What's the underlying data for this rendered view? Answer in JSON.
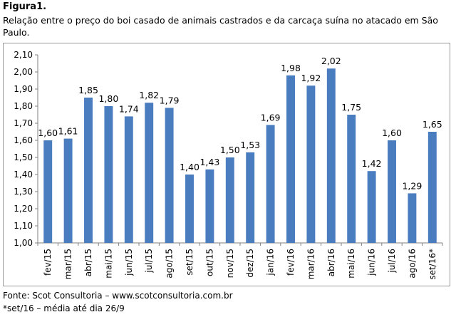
{
  "figure_label": "Figura1.",
  "caption": "Relação entre o preço do boi casado de animais castrados e da carcaça suína no atacado em São Paulo.",
  "source": "Fonte: Scot Consultoria – www.scotconsultoria.com.br",
  "footnote": "*set/16 – média até dia 26/9",
  "colors": {
    "bar": "#4a7cc0",
    "axis": "#808080",
    "grid": "#d9d9d9"
  },
  "chart_data": {
    "type": "bar",
    "title": "",
    "xlabel": "",
    "ylabel": "",
    "ylim": [
      1.0,
      2.1
    ],
    "yticks": [
      "1,00",
      "1,10",
      "1,20",
      "1,30",
      "1,40",
      "1,50",
      "1,60",
      "1,70",
      "1,80",
      "1,90",
      "2,00",
      "2,10"
    ],
    "grid": false,
    "categories": [
      "fev/15",
      "mar/15",
      "abr/15",
      "mai/15",
      "jun/15",
      "jul/15",
      "ago/15",
      "set/15",
      "out/15",
      "nov/15",
      "dez/15",
      "jan/16",
      "fev/16",
      "mar/16",
      "abr/16",
      "mai/16",
      "jun/16",
      "jul/16",
      "ago/16",
      "set/16*"
    ],
    "values": [
      1.6,
      1.61,
      1.85,
      1.8,
      1.74,
      1.82,
      1.79,
      1.4,
      1.43,
      1.5,
      1.53,
      1.69,
      1.98,
      1.92,
      2.02,
      1.75,
      1.42,
      1.6,
      1.29,
      1.65
    ],
    "value_labels": [
      "1,60",
      "1,61",
      "1,85",
      "1,80",
      "1,74",
      "1,82",
      "1,79",
      "1,40",
      "1,43",
      "1,50",
      "1,53",
      "1,69",
      "1,98",
      "1,92",
      "2,02",
      "1,75",
      "1,42",
      "1,60",
      "1,29",
      "1,65"
    ]
  }
}
